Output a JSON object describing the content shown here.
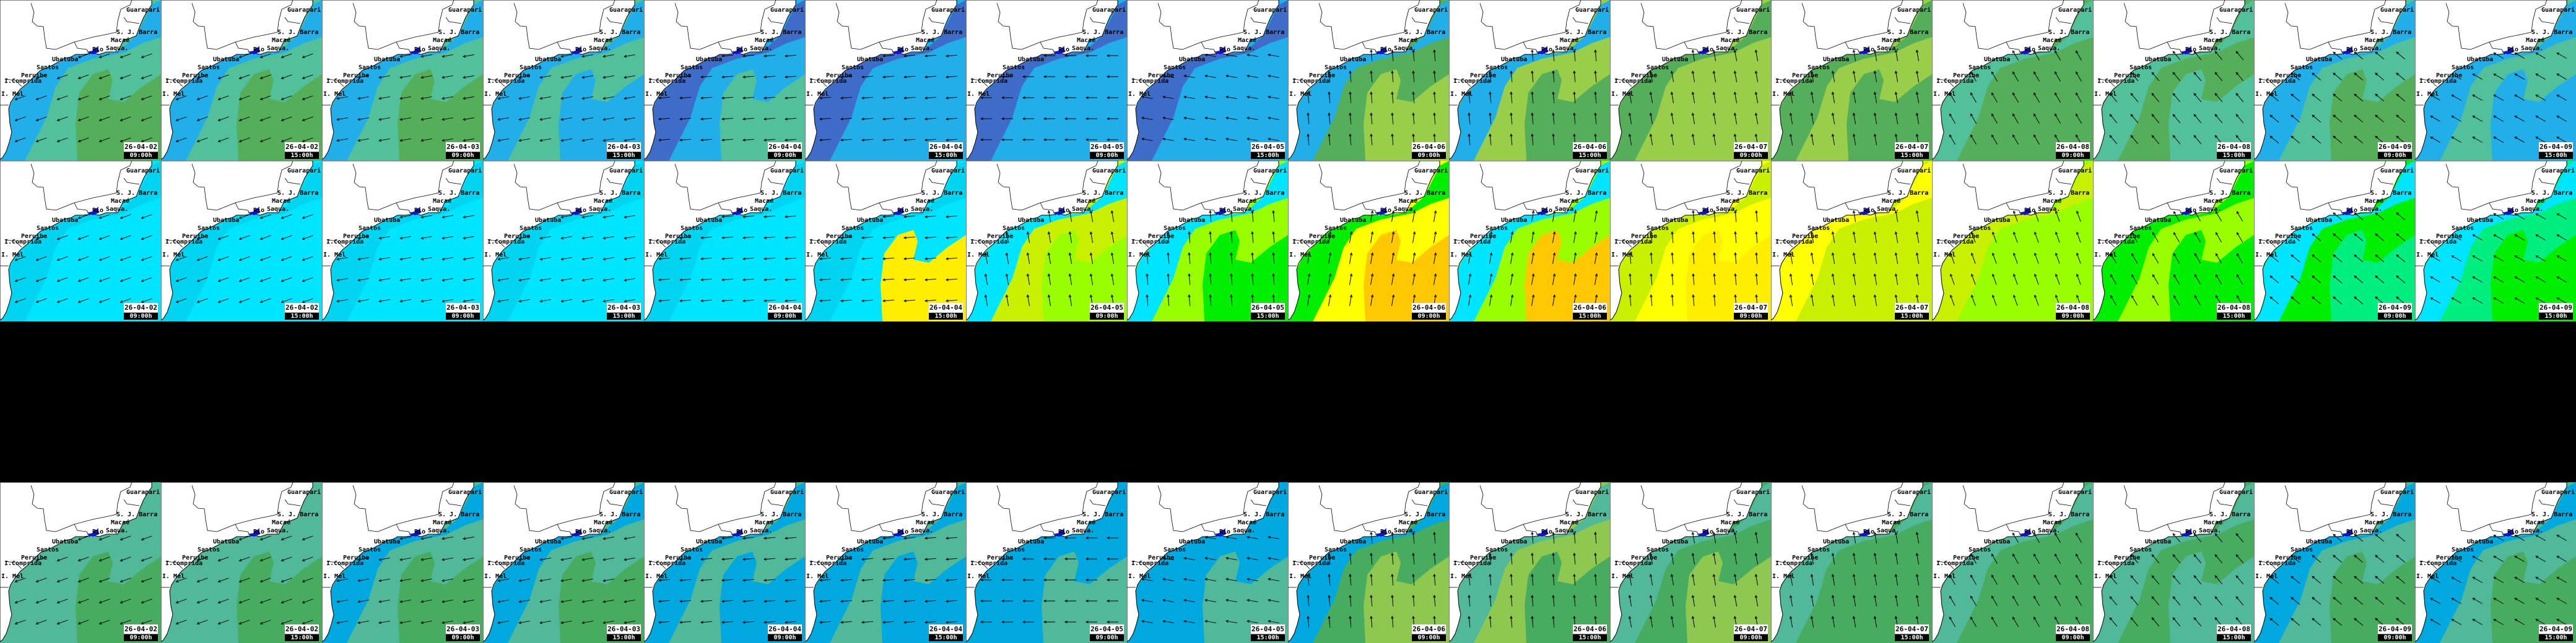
{
  "cities": [
    "Guarapari",
    "S. J. Barra",
    "Macaé",
    "Rio",
    "Saqua.",
    "Ubatuba",
    "Santos",
    "Peruibe",
    "I.Comprida",
    "I. Mel"
  ],
  "timestamps": [
    {
      "date": "26-04-02",
      "time": "09:00h"
    },
    {
      "date": "26-04-02",
      "time": "15:00h"
    },
    {
      "date": "26-04-03",
      "time": "09:00h"
    },
    {
      "date": "26-04-03",
      "time": "15:00h"
    },
    {
      "date": "26-04-04",
      "time": "09:00h"
    },
    {
      "date": "26-04-04",
      "time": "15:00h"
    },
    {
      "date": "26-04-05",
      "time": "09:00h"
    },
    {
      "date": "26-04-05",
      "time": "15:00h"
    },
    {
      "date": "26-04-06",
      "time": "09:00h"
    },
    {
      "date": "26-04-06",
      "time": "15:00h"
    },
    {
      "date": "26-04-07",
      "time": "09:00h"
    },
    {
      "date": "26-04-07",
      "time": "15:00h"
    },
    {
      "date": "26-04-08",
      "time": "09:00h"
    },
    {
      "date": "26-04-08",
      "time": "15:00h"
    },
    {
      "date": "26-04-09",
      "time": "09:00h"
    },
    {
      "date": "26-04-09",
      "time": "15:00h"
    }
  ],
  "rows": [
    {
      "tiles": [
        {
          "colors": [
            "#52c09a",
            "#22aee8",
            "#55ae5a"
          ],
          "dir": 200
        },
        {
          "colors": [
            "#52c09a",
            "#22aee8",
            "#55ae5a"
          ],
          "dir": 200
        },
        {
          "colors": [
            "#52c09a",
            "#22aee8",
            "#55ae5a"
          ],
          "dir": 190
        },
        {
          "colors": [
            "#52c09a",
            "#22aee8",
            "#22aee8"
          ],
          "dir": 190
        },
        {
          "colors": [
            "#22aee8",
            "#3f6cc8",
            "#52c09a"
          ],
          "dir": 185
        },
        {
          "colors": [
            "#22aee8",
            "#3f6cc8",
            "#22aee8"
          ],
          "dir": 185
        },
        {
          "colors": [
            "#22aee8",
            "#3f6cc8",
            "#22aee8"
          ],
          "dir": 180
        },
        {
          "colors": [
            "#22aee8",
            "#3f6cc8",
            "#22aee8"
          ],
          "dir": 170
        },
        {
          "colors": [
            "#55ae5a",
            "#22aee8",
            "#9acd4a"
          ],
          "dir": 95
        },
        {
          "colors": [
            "#9acd4a",
            "#22aee8",
            "#55ae5a"
          ],
          "dir": 95
        },
        {
          "colors": [
            "#9acd4a",
            "#55ae5a",
            "#9acd4a"
          ],
          "dir": 100
        },
        {
          "colors": [
            "#9acd4a",
            "#55ae5a",
            "#55ae5a"
          ],
          "dir": 100
        },
        {
          "colors": [
            "#55ae5a",
            "#52c09a",
            "#55ae5a"
          ],
          "dir": 120
        },
        {
          "colors": [
            "#55ae5a",
            "#52c09a",
            "#52c09a"
          ],
          "dir": 130
        },
        {
          "colors": [
            "#52c09a",
            "#22aee8",
            "#55ae5a"
          ],
          "dir": 140
        },
        {
          "colors": [
            "#52c09a",
            "#22aee8",
            "#22aee8"
          ],
          "dir": 150
        }
      ]
    },
    {
      "tiles": [
        {
          "colors": [
            "#00e5ff",
            "#00d4f0",
            "#00e5ff"
          ],
          "dir": 200
        },
        {
          "colors": [
            "#00e5ff",
            "#00d4f0",
            "#00e5ff"
          ],
          "dir": 200
        },
        {
          "colors": [
            "#00e5ff",
            "#00d4f0",
            "#00e5ff"
          ],
          "dir": 190
        },
        {
          "colors": [
            "#00e5ff",
            "#00d4f0",
            "#00e5ff"
          ],
          "dir": 190
        },
        {
          "colors": [
            "#00e5ff",
            "#00d4f0",
            "#00e5ff"
          ],
          "dir": 185
        },
        {
          "colors": [
            "#00e5ff",
            "#00d4f0",
            "#ffee00"
          ],
          "dir": 185
        },
        {
          "colors": [
            "#c8f000",
            "#00e5ff",
            "#99ff00"
          ],
          "dir": 100
        },
        {
          "colors": [
            "#99ff00",
            "#00e5ff",
            "#00ee00"
          ],
          "dir": 95
        },
        {
          "colors": [
            "#ffff00",
            "#00ee00",
            "#ffc800"
          ],
          "dir": 80
        },
        {
          "colors": [
            "#99ff00",
            "#00e5ff",
            "#ffc800"
          ],
          "dir": 80
        },
        {
          "colors": [
            "#ffff00",
            "#c8f000",
            "#ffee00"
          ],
          "dir": 95
        },
        {
          "colors": [
            "#c8f000",
            "#ffff00",
            "#c8f000"
          ],
          "dir": 100
        },
        {
          "colors": [
            "#99ff00",
            "#c8f000",
            "#99ff00"
          ],
          "dir": 110
        },
        {
          "colors": [
            "#99ff00",
            "#00ee00",
            "#00ee00"
          ],
          "dir": 120
        },
        {
          "colors": [
            "#00ee00",
            "#00e5ff",
            "#00ee80"
          ],
          "dir": 140
        },
        {
          "colors": [
            "#00ee80",
            "#00e5ff",
            "#00ee00"
          ],
          "dir": 150
        }
      ]
    },
    {
      "tiles": [
        {
          "colors": [
            "#52b89a",
            "#52b89a",
            "#48ac60"
          ],
          "dir": 200
        },
        {
          "colors": [
            "#52b89a",
            "#52b89a",
            "#48ac60"
          ],
          "dir": 200
        },
        {
          "colors": [
            "#52b89a",
            "#00a8e0",
            "#48ac60"
          ],
          "dir": 190
        },
        {
          "colors": [
            "#52b89a",
            "#00a8e0",
            "#48ac60"
          ],
          "dir": 190
        },
        {
          "colors": [
            "#52b89a",
            "#00a8e0",
            "#00a8e0"
          ],
          "dir": 185
        },
        {
          "colors": [
            "#52b89a",
            "#00a8e0",
            "#00a8e0"
          ],
          "dir": 185
        },
        {
          "colors": [
            "#00a8e0",
            "#00a8e0",
            "#52b89a"
          ],
          "dir": 180
        },
        {
          "colors": [
            "#00a8e0",
            "#00a8e0",
            "#52b89a"
          ],
          "dir": 170
        },
        {
          "colors": [
            "#48ac60",
            "#00a8e0",
            "#8ec850"
          ],
          "dir": 95
        },
        {
          "colors": [
            "#8ec850",
            "#52b89a",
            "#48ac60"
          ],
          "dir": 95
        },
        {
          "colors": [
            "#48ac60",
            "#52b89a",
            "#8ec850"
          ],
          "dir": 100
        },
        {
          "colors": [
            "#48ac60",
            "#52b89a",
            "#48ac60"
          ],
          "dir": 100
        },
        {
          "colors": [
            "#48ac60",
            "#52b89a",
            "#48ac60"
          ],
          "dir": 120
        },
        {
          "colors": [
            "#48ac60",
            "#52b89a",
            "#52b89a"
          ],
          "dir": 130
        },
        {
          "colors": [
            "#52b89a",
            "#00a8e0",
            "#48ac60"
          ],
          "dir": 140
        },
        {
          "colors": [
            "#52b89a",
            "#00a8e0",
            "#48ac60"
          ],
          "dir": 150
        }
      ]
    }
  ]
}
